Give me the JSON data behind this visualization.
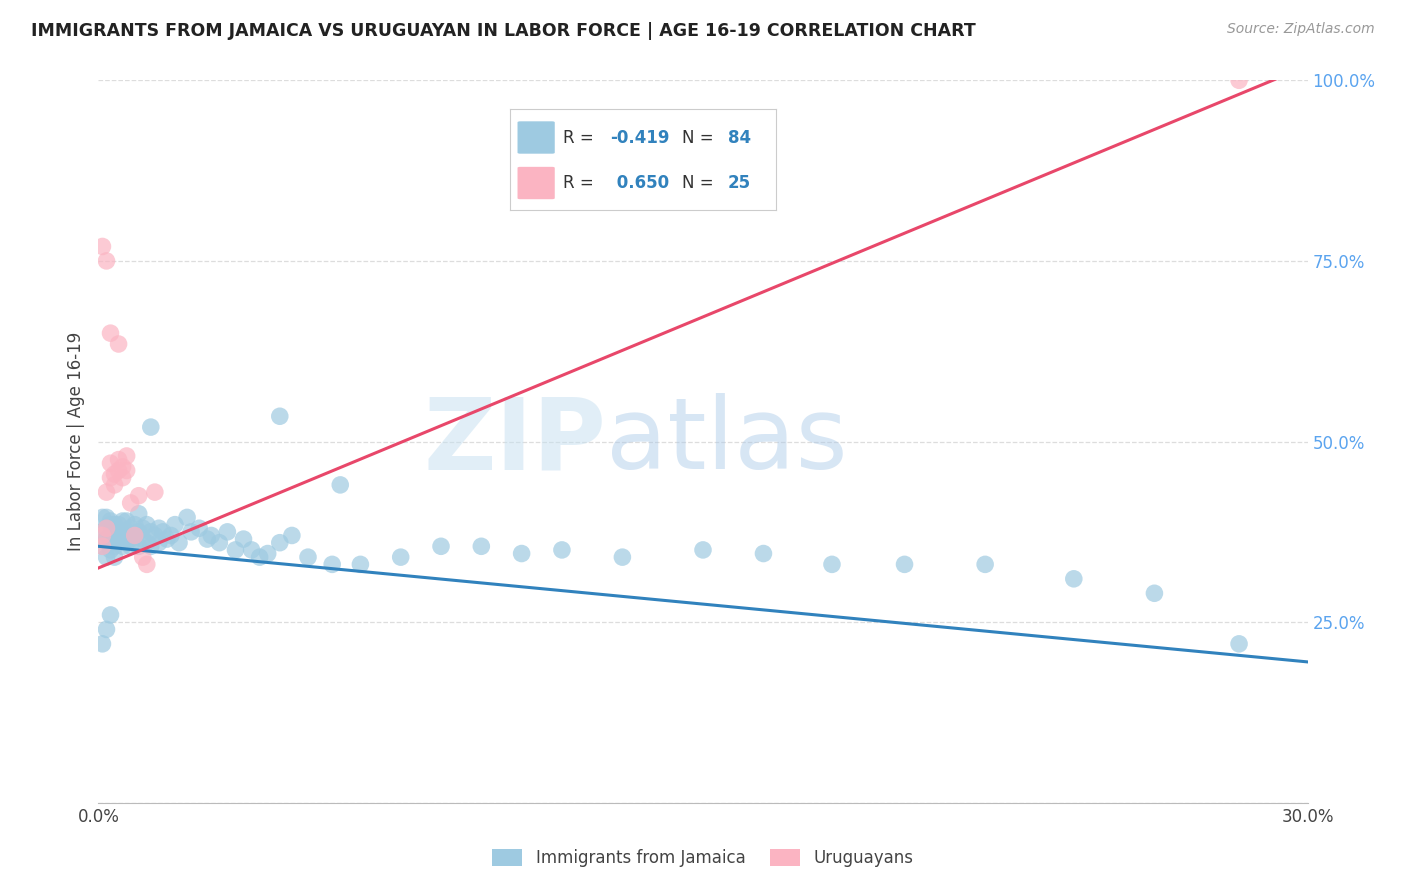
{
  "title": "IMMIGRANTS FROM JAMAICA VS URUGUAYAN IN LABOR FORCE | AGE 16-19 CORRELATION CHART",
  "source": "Source: ZipAtlas.com",
  "ylabel": "In Labor Force | Age 16-19",
  "xmin": 0.0,
  "xmax": 0.3,
  "ymin": 0.0,
  "ymax": 1.0,
  "xticks": [
    0.0,
    0.05,
    0.1,
    0.15,
    0.2,
    0.25,
    0.3
  ],
  "yticks_right": [
    0.0,
    0.25,
    0.5,
    0.75,
    1.0
  ],
  "ytick_labels_right": [
    "",
    "25.0%",
    "50.0%",
    "75.0%",
    "100.0%"
  ],
  "blue_color": "#9ecae1",
  "pink_color": "#fbb4c2",
  "blue_line_color": "#3182bd",
  "pink_line_color": "#e8476a",
  "legend_label_blue": "Immigrants from Jamaica",
  "legend_label_pink": "Uruguayans",
  "watermark_zip": "ZIP",
  "watermark_atlas": "atlas",
  "blue_line_x0": 0.0,
  "blue_line_y0": 0.355,
  "blue_line_x1": 0.3,
  "blue_line_y1": 0.195,
  "pink_line_x0": 0.0,
  "pink_line_y0": 0.325,
  "pink_line_x1": 0.3,
  "pink_line_y1": 1.02,
  "blue_scatter_x": [
    0.001,
    0.001,
    0.001,
    0.002,
    0.002,
    0.002,
    0.002,
    0.003,
    0.003,
    0.003,
    0.003,
    0.003,
    0.004,
    0.004,
    0.004,
    0.004,
    0.005,
    0.005,
    0.005,
    0.006,
    0.006,
    0.006,
    0.007,
    0.007,
    0.007,
    0.008,
    0.008,
    0.008,
    0.009,
    0.009,
    0.01,
    0.01,
    0.01,
    0.011,
    0.011,
    0.012,
    0.012,
    0.013,
    0.013,
    0.014,
    0.015,
    0.015,
    0.016,
    0.017,
    0.018,
    0.019,
    0.02,
    0.022,
    0.023,
    0.025,
    0.027,
    0.028,
    0.03,
    0.032,
    0.034,
    0.036,
    0.038,
    0.04,
    0.042,
    0.045,
    0.048,
    0.052,
    0.058,
    0.065,
    0.075,
    0.085,
    0.095,
    0.105,
    0.115,
    0.13,
    0.15,
    0.165,
    0.182,
    0.2,
    0.22,
    0.242,
    0.262,
    0.283,
    0.001,
    0.002,
    0.003,
    0.013,
    0.045,
    0.06
  ],
  "blue_scatter_y": [
    0.355,
    0.375,
    0.395,
    0.365,
    0.38,
    0.395,
    0.34,
    0.37,
    0.385,
    0.36,
    0.35,
    0.39,
    0.37,
    0.355,
    0.385,
    0.34,
    0.375,
    0.36,
    0.385,
    0.37,
    0.355,
    0.39,
    0.375,
    0.36,
    0.39,
    0.365,
    0.38,
    0.355,
    0.37,
    0.385,
    0.375,
    0.355,
    0.4,
    0.365,
    0.38,
    0.36,
    0.385,
    0.375,
    0.355,
    0.37,
    0.38,
    0.36,
    0.375,
    0.365,
    0.37,
    0.385,
    0.36,
    0.395,
    0.375,
    0.38,
    0.365,
    0.37,
    0.36,
    0.375,
    0.35,
    0.365,
    0.35,
    0.34,
    0.345,
    0.36,
    0.37,
    0.34,
    0.33,
    0.33,
    0.34,
    0.355,
    0.355,
    0.345,
    0.35,
    0.34,
    0.35,
    0.345,
    0.33,
    0.33,
    0.33,
    0.31,
    0.29,
    0.22,
    0.22,
    0.24,
    0.26,
    0.52,
    0.535,
    0.44
  ],
  "pink_scatter_x": [
    0.001,
    0.001,
    0.002,
    0.002,
    0.003,
    0.003,
    0.004,
    0.004,
    0.005,
    0.005,
    0.006,
    0.006,
    0.007,
    0.007,
    0.008,
    0.009,
    0.01,
    0.011,
    0.012,
    0.014,
    0.001,
    0.002,
    0.003,
    0.005,
    0.283
  ],
  "pink_scatter_y": [
    0.355,
    0.37,
    0.38,
    0.43,
    0.45,
    0.47,
    0.44,
    0.455,
    0.46,
    0.475,
    0.45,
    0.465,
    0.46,
    0.48,
    0.415,
    0.37,
    0.425,
    0.34,
    0.33,
    0.43,
    0.77,
    0.75,
    0.65,
    0.635,
    1.0
  ]
}
